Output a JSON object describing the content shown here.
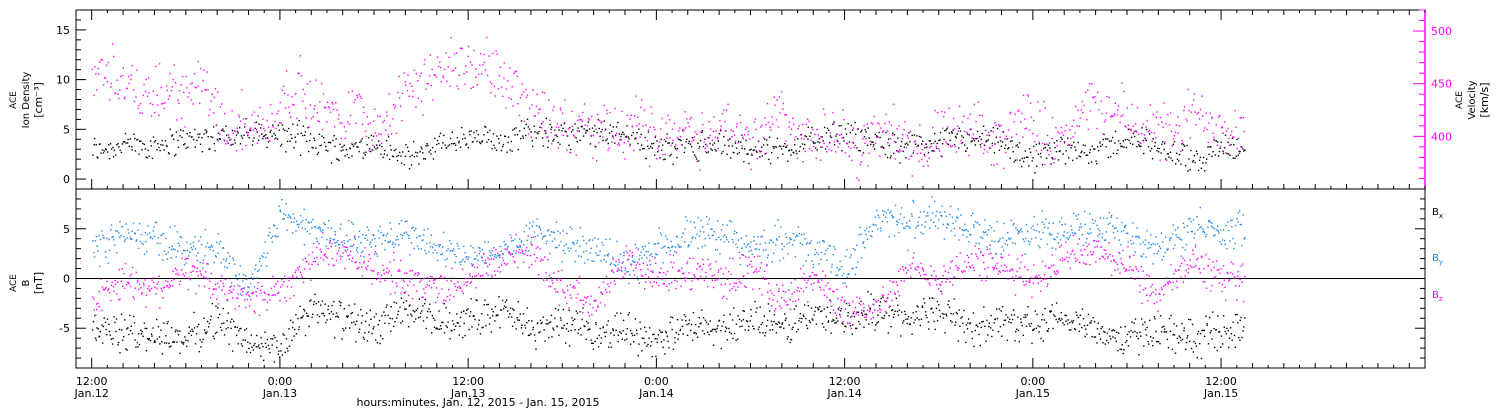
{
  "footer": {
    "xlabel": "hours:minutes, Jan. 12, 2015 - Jan. 15, 2015"
  },
  "colors": {
    "black": "#000000",
    "magenta": "#ff00ff",
    "blue": "#1e88e5"
  },
  "x_axis": {
    "range_hours": [
      -1,
      85
    ],
    "ticks": [
      {
        "hour": 0,
        "time": "12:00",
        "date": "Jan.12"
      },
      {
        "hour": 12,
        "time": "0:00",
        "date": "Jan.13"
      },
      {
        "hour": 24,
        "time": "12:00",
        "date": "Jan.13"
      },
      {
        "hour": 36,
        "time": "0:00",
        "date": "Jan.14"
      },
      {
        "hour": 48,
        "time": "12:00",
        "date": "Jan.14"
      },
      {
        "hour": 60,
        "time": "0:00",
        "date": "Jan.15"
      },
      {
        "hour": 72,
        "time": "12:00",
        "date": "Jan.15"
      }
    ]
  },
  "chart_data": [
    {
      "type": "scatter",
      "panel": "density-velocity",
      "ylabel_left": [
        "ACE",
        "Ion Density",
        "[cm⁻³]"
      ],
      "ylabel_right": [
        "ACE",
        "Velocity",
        "[km/s]"
      ],
      "ylim_left": [
        -1,
        17
      ],
      "ylim_right": [
        350,
        520
      ],
      "yticks_left": [
        0,
        5,
        10,
        15
      ],
      "yticks_right": [
        400,
        450,
        500
      ],
      "series": [
        {
          "color": "#000000",
          "axis": "left",
          "x": [
            0,
            2,
            4,
            6,
            8,
            10,
            12,
            14,
            16,
            18,
            20,
            22,
            24,
            26,
            28,
            30,
            32,
            34,
            36,
            38,
            40,
            42,
            44,
            46,
            48,
            50,
            52,
            54,
            56,
            58,
            60,
            62,
            64,
            66,
            68,
            70,
            72
          ],
          "y": [
            3,
            3.5,
            3.5,
            4,
            4.5,
            4.5,
            4.5,
            4,
            3,
            3.5,
            2,
            3.5,
            4,
            4,
            5,
            4.5,
            4.5,
            5,
            3,
            3.5,
            3.5,
            3,
            3,
            4,
            4.5,
            4,
            3,
            4,
            4,
            3.5,
            2,
            3,
            3,
            4,
            3.5,
            2,
            3
          ]
        },
        {
          "color": "#ff00ff",
          "axis": "right",
          "x": [
            0,
            1,
            2,
            3,
            4,
            5,
            6,
            7,
            8,
            9,
            10,
            11,
            12,
            13,
            14,
            15,
            16,
            17,
            18,
            19,
            20,
            21,
            22,
            23,
            24,
            25,
            26,
            27,
            28,
            29,
            30,
            31,
            32,
            33,
            34,
            35,
            36,
            37,
            38,
            39,
            40,
            41,
            42,
            43,
            44,
            45,
            46,
            47,
            48,
            49,
            50,
            51,
            52,
            53,
            54,
            55,
            56,
            57,
            58,
            59,
            60,
            61,
            62,
            63,
            64,
            65,
            66,
            67,
            68,
            69,
            70,
            71,
            72
          ],
          "y": [
            455,
            465,
            450,
            440,
            435,
            445,
            440,
            450,
            420,
            415,
            415,
            405,
            430,
            450,
            430,
            425,
            415,
            430,
            410,
            420,
            440,
            450,
            460,
            470,
            470,
            465,
            455,
            445,
            430,
            420,
            415,
            410,
            405,
            400,
            405,
            410,
            400,
            410,
            405,
            400,
            410,
            405,
            400,
            410,
            420,
            405,
            395,
            400,
            395,
            390,
            400,
            405,
            395,
            390,
            395,
            400,
            405,
            395,
            400,
            410,
            420,
            400,
            405,
            420,
            430,
            420,
            420,
            410,
            405,
            400,
            420,
            420,
            410
          ]
        }
      ]
    },
    {
      "type": "scatter",
      "panel": "magnetic-field",
      "ylabel_left": [
        "ACE",
        "B",
        "[nT]"
      ],
      "ylim": [
        -9,
        9
      ],
      "yticks": [
        -5,
        0,
        5
      ],
      "zero_line": true,
      "legend": [
        {
          "name": "Bx",
          "base": "B",
          "sub": "x",
          "color": "#000000"
        },
        {
          "name": "By",
          "base": "B",
          "sub": "y",
          "color": "#1e88e5"
        },
        {
          "name": "Bz",
          "base": "B",
          "sub": "z",
          "color": "#ff00ff"
        }
      ],
      "series": [
        {
          "name": "Bx",
          "color": "#000000",
          "x": [
            0,
            2,
            4,
            6,
            8,
            10,
            12,
            14,
            16,
            18,
            20,
            22,
            24,
            26,
            28,
            30,
            32,
            34,
            36,
            38,
            40,
            42,
            44,
            46,
            48,
            50,
            52,
            54,
            56,
            58,
            60,
            62,
            64,
            66,
            68,
            70,
            72
          ],
          "y": [
            -5,
            -5.5,
            -5.5,
            -6,
            -4,
            -6.5,
            -7,
            -3,
            -4,
            -5,
            -3,
            -4.5,
            -4,
            -3,
            -5,
            -4.5,
            -5.5,
            -5,
            -6,
            -5,
            -5,
            -4,
            -5,
            -3.5,
            -4,
            -3,
            -4,
            -3,
            -5,
            -4,
            -5,
            -4,
            -5,
            -6,
            -5,
            -6,
            -5
          ]
        },
        {
          "name": "By",
          "color": "#1e88e5",
          "x": [
            0,
            2,
            4,
            6,
            8,
            10,
            12,
            14,
            16,
            18,
            20,
            22,
            24,
            26,
            28,
            30,
            32,
            34,
            36,
            38,
            40,
            42,
            44,
            46,
            48,
            50,
            52,
            54,
            56,
            58,
            60,
            62,
            64,
            66,
            68,
            70,
            72
          ],
          "y": [
            3,
            4.5,
            4,
            3,
            3,
            -1,
            6.5,
            5,
            4,
            4,
            4.5,
            3,
            2,
            2.5,
            4.5,
            4,
            3,
            1,
            3,
            4.5,
            4.5,
            3,
            4,
            3,
            1,
            6,
            6,
            6.5,
            5,
            4,
            5,
            5,
            5,
            4,
            3,
            5,
            5
          ]
        },
        {
          "name": "Bz",
          "color": "#ff00ff",
          "x": [
            0,
            2,
            4,
            6,
            8,
            10,
            12,
            14,
            16,
            18,
            20,
            22,
            24,
            26,
            28,
            30,
            32,
            34,
            36,
            38,
            40,
            42,
            44,
            46,
            48,
            50,
            52,
            54,
            56,
            58,
            60,
            62,
            64,
            66,
            68,
            70,
            72
          ],
          "y": [
            -2,
            0,
            -1,
            1,
            -1,
            -2,
            -1,
            2,
            3,
            1,
            0,
            -1,
            0,
            2,
            3,
            -1,
            -2,
            2,
            0,
            1,
            0,
            1,
            -2,
            0,
            -3,
            -3,
            1,
            0,
            2,
            1,
            0,
            2,
            3,
            1,
            -2,
            2,
            0
          ]
        }
      ]
    }
  ]
}
